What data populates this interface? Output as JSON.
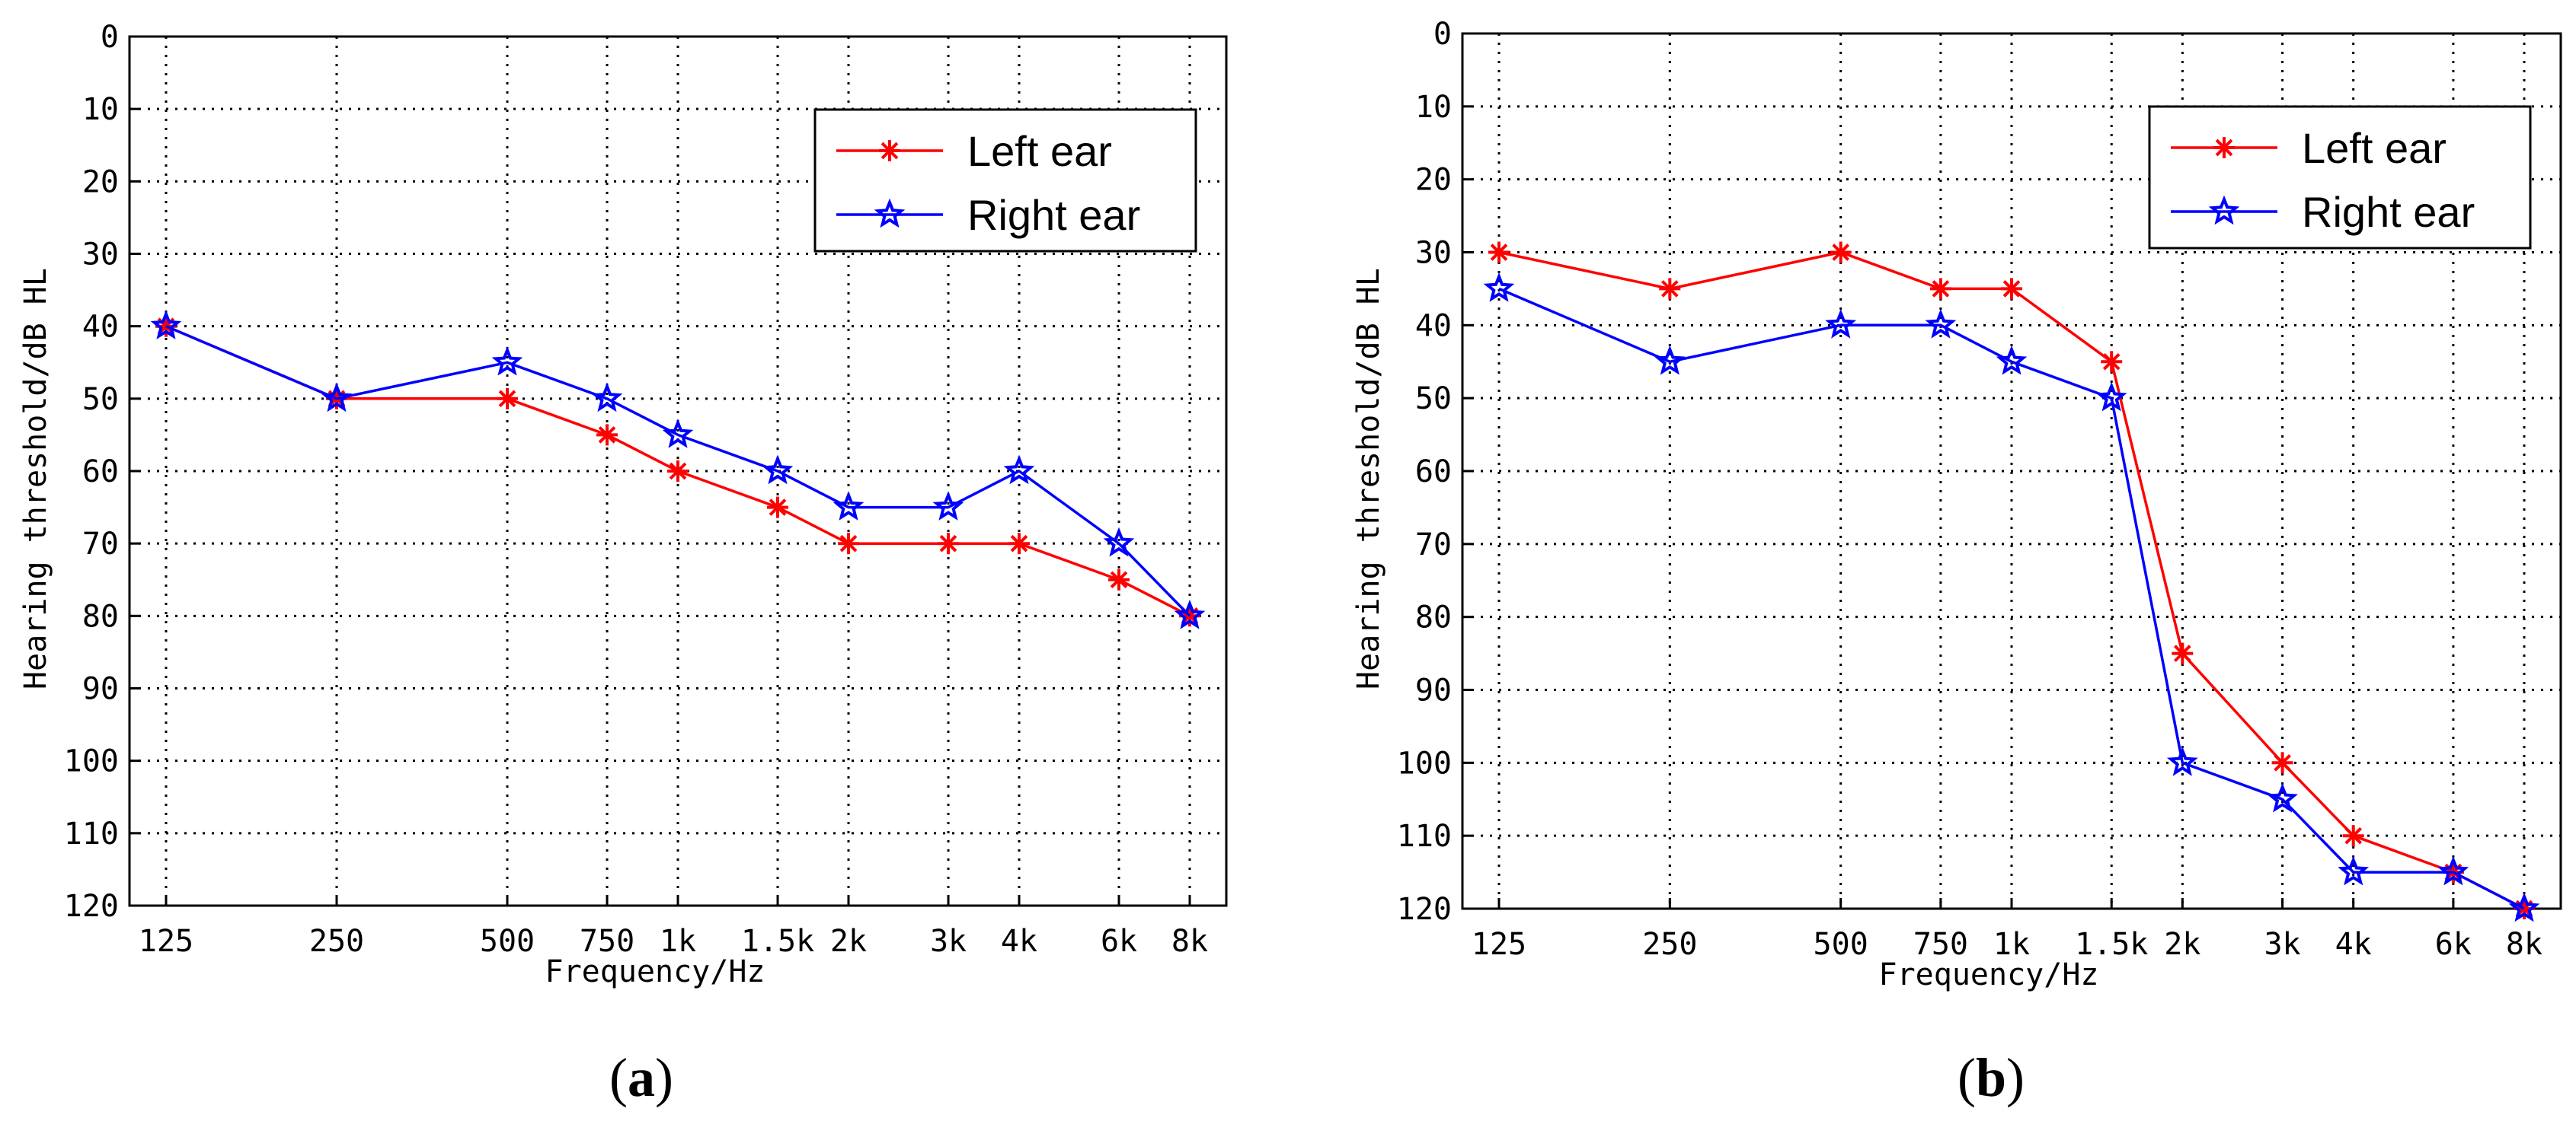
{
  "chart_data": [
    {
      "type": "line",
      "caption_letter": "a",
      "x": [
        "125",
        "250",
        "500",
        "750",
        "1k",
        "1.5k",
        "2k",
        "3k",
        "4k",
        "6k",
        "8k"
      ],
      "x_hz": [
        125,
        250,
        500,
        750,
        1000,
        1500,
        2000,
        3000,
        4000,
        6000,
        8000
      ],
      "xlabel": "Frequency/Hz",
      "ylabel": "Hearing threshold/dB HL",
      "ylim": [
        0,
        120
      ],
      "y_inverted": true,
      "yticks": [
        "0",
        "10",
        "20",
        "30",
        "40",
        "50",
        "60",
        "70",
        "80",
        "90",
        "100",
        "110",
        "120"
      ],
      "grid": true,
      "legend_position": "top-right",
      "series": [
        {
          "name": "Left ear",
          "color": "#ff0000",
          "marker": "asterisk",
          "values": [
            40,
            50,
            50,
            55,
            60,
            65,
            70,
            70,
            70,
            75,
            80
          ]
        },
        {
          "name": "Right ear",
          "color": "#0000ff",
          "marker": "star",
          "values": [
            40,
            50,
            45,
            50,
            55,
            60,
            65,
            65,
            60,
            70,
            80
          ]
        }
      ]
    },
    {
      "type": "line",
      "caption_letter": "b",
      "x": [
        "125",
        "250",
        "500",
        "750",
        "1k",
        "1.5k",
        "2k",
        "3k",
        "4k",
        "6k",
        "8k"
      ],
      "x_hz": [
        125,
        250,
        500,
        750,
        1000,
        1500,
        2000,
        3000,
        4000,
        6000,
        8000
      ],
      "xlabel": "Frequency/Hz",
      "ylabel": "Hearing threshold/dB HL",
      "ylim": [
        0,
        120
      ],
      "y_inverted": true,
      "yticks": [
        "0",
        "10",
        "20",
        "30",
        "40",
        "50",
        "60",
        "70",
        "80",
        "90",
        "100",
        "110",
        "120"
      ],
      "grid": true,
      "legend_position": "top-right",
      "series": [
        {
          "name": "Left ear",
          "color": "#ff0000",
          "marker": "asterisk",
          "values": [
            30,
            35,
            30,
            35,
            35,
            45,
            85,
            100,
            110,
            115,
            120
          ]
        },
        {
          "name": "Right ear",
          "color": "#0000ff",
          "marker": "star",
          "values": [
            35,
            45,
            40,
            40,
            45,
            50,
            100,
            105,
            115,
            115,
            120
          ]
        }
      ]
    }
  ]
}
